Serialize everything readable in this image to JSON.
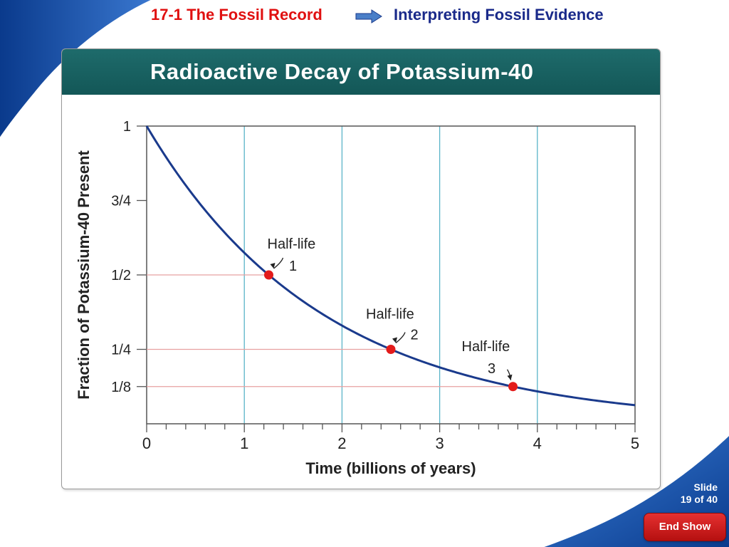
{
  "header": {
    "section": "17-1 The Fossil Record",
    "arrow_icon": "right-arrow-icon",
    "topic": "Interpreting Fossil Evidence"
  },
  "panel": {
    "title": "Radioactive Decay of Potassium-40"
  },
  "chart_data": {
    "type": "line",
    "title": "Radioactive Decay of Potassium-40",
    "xlabel": "Time (billions of years)",
    "ylabel": "Fraction of Potassium-40 Present",
    "xlim": [
      0,
      5
    ],
    "ylim": [
      0,
      1
    ],
    "x_ticks": [
      "0",
      "1",
      "2",
      "3",
      "4",
      "5"
    ],
    "y_ticks": [
      {
        "value": 1,
        "label": "1"
      },
      {
        "value": 0.75,
        "label": "3/4"
      },
      {
        "value": 0.5,
        "label": "1/2"
      },
      {
        "value": 0.25,
        "label": "1/4"
      },
      {
        "value": 0.125,
        "label": "1/8"
      }
    ],
    "half_life": 1.25,
    "grid": "vertical at integer x",
    "series": [
      {
        "x": [
          0,
          0.25,
          0.5,
          0.75,
          1,
          1.25,
          1.5,
          1.75,
          2,
          2.25,
          2.5,
          2.75,
          3,
          3.25,
          3.5,
          3.75,
          4,
          4.25,
          4.5,
          4.75,
          5
        ],
        "values": [
          1,
          0.871,
          0.758,
          0.66,
          0.574,
          0.5,
          0.435,
          0.379,
          0.33,
          0.287,
          0.25,
          0.218,
          0.189,
          0.165,
          0.144,
          0.125,
          0.109,
          0.095,
          0.082,
          0.072,
          0.0625
        ]
      }
    ],
    "annotations": [
      {
        "label": "Half-life",
        "number": "1",
        "x": 1.25,
        "y": 0.5
      },
      {
        "label": "Half-life",
        "number": "2",
        "x": 2.5,
        "y": 0.25
      },
      {
        "label": "Half-life",
        "number": "3",
        "x": 3.75,
        "y": 0.125
      }
    ],
    "colors": {
      "curve": "#1a3a8c",
      "point": "#e31b1b",
      "guide": "#e8a0a0",
      "grid": "#5ab4c8",
      "axis": "#555555"
    }
  },
  "footer": {
    "slide_label": "Slide",
    "slide_of": "19 of 40",
    "end_show": "End Show"
  }
}
